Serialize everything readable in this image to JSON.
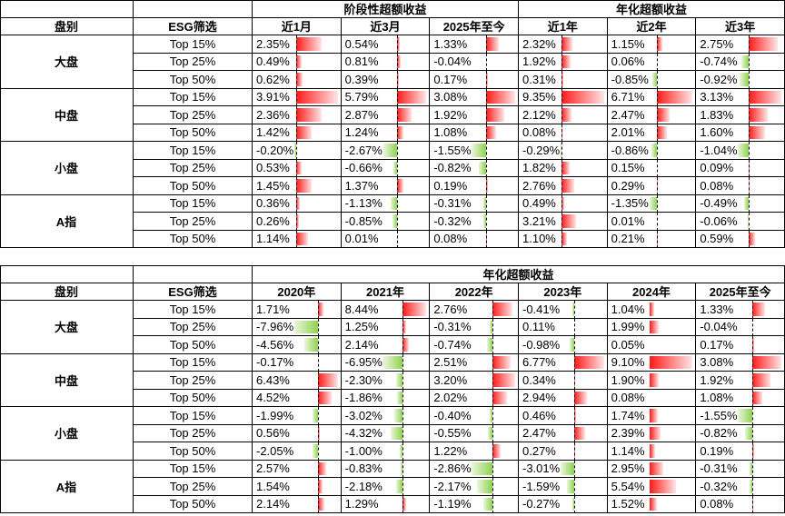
{
  "tables": [
    {
      "group_label": "盘别",
      "filter_label": "ESG筛选",
      "column_groups": [
        {
          "title": "阶段性超额收益",
          "columns": [
            "近1月",
            "近3月",
            "2025年至今"
          ]
        },
        {
          "title": "年化超额收益",
          "columns": [
            "近1年",
            "近2年",
            "近3年"
          ]
        }
      ],
      "groups": [
        {
          "name": "大盘",
          "rows": [
            {
              "filter": "Top 15%",
              "values": [
                2.35,
                0.54,
                1.33,
                2.32,
                1.15,
                2.75
              ],
              "value_labels": [
                "2.35%",
                "0.54%",
                "1.33%",
                "2.32%",
                "1.15%",
                "2.75%"
              ]
            },
            {
              "filter": "Top 25%",
              "values": [
                0.49,
                0.81,
                -0.04,
                1.92,
                0.06,
                -0.74
              ],
              "value_labels": [
                "0.49%",
                "0.81%",
                "-0.04%",
                "1.92%",
                "0.06%",
                "-0.74%"
              ]
            },
            {
              "filter": "Top 50%",
              "values": [
                0.62,
                0.39,
                0.17,
                0.31,
                -0.85,
                -0.92
              ],
              "value_labels": [
                "0.62%",
                "0.39%",
                "0.17%",
                "0.31%",
                "-0.85%",
                "-0.92%"
              ]
            }
          ]
        },
        {
          "name": "中盘",
          "rows": [
            {
              "filter": "Top 15%",
              "values": [
                3.91,
                5.79,
                3.08,
                9.35,
                6.71,
                3.13
              ],
              "value_labels": [
                "3.91%",
                "5.79%",
                "3.08%",
                "9.35%",
                "6.71%",
                "3.13%"
              ]
            },
            {
              "filter": "Top 25%",
              "values": [
                2.36,
                2.87,
                1.92,
                2.12,
                2.47,
                1.83
              ],
              "value_labels": [
                "2.36%",
                "2.87%",
                "1.92%",
                "2.12%",
                "2.47%",
                "1.83%"
              ]
            },
            {
              "filter": "Top 50%",
              "values": [
                1.42,
                1.24,
                1.08,
                0.08,
                2.01,
                1.6
              ],
              "value_labels": [
                "1.42%",
                "1.24%",
                "1.08%",
                "0.08%",
                "2.01%",
                "1.60%"
              ]
            }
          ]
        },
        {
          "name": "小盘",
          "rows": [
            {
              "filter": "Top 15%",
              "values": [
                -0.2,
                -2.67,
                -1.55,
                -0.29,
                -0.86,
                -1.04
              ],
              "value_labels": [
                "-0.20%",
                "-2.67%",
                "-1.55%",
                "-0.29%",
                "-0.86%",
                "-1.04%"
              ]
            },
            {
              "filter": "Top 25%",
              "values": [
                0.53,
                -0.66,
                -0.82,
                1.82,
                0.15,
                0.09
              ],
              "value_labels": [
                "0.53%",
                "-0.66%",
                "-0.82%",
                "1.82%",
                "0.15%",
                "0.09%"
              ]
            },
            {
              "filter": "Top 50%",
              "values": [
                1.45,
                1.37,
                0.19,
                2.76,
                0.29,
                0.08
              ],
              "value_labels": [
                "1.45%",
                "1.37%",
                "0.19%",
                "2.76%",
                "0.29%",
                "0.08%"
              ]
            }
          ]
        },
        {
          "name": "A指",
          "rows": [
            {
              "filter": "Top 15%",
              "values": [
                0.36,
                -1.13,
                -0.31,
                0.49,
                -1.35,
                -0.49
              ],
              "value_labels": [
                "0.36%",
                "-1.13%",
                "-0.31%",
                "0.49%",
                "-1.35%",
                "-0.49%"
              ]
            },
            {
              "filter": "Top 25%",
              "values": [
                0.26,
                -0.85,
                -0.32,
                3.21,
                0.01,
                -0.06
              ],
              "value_labels": [
                "0.26%",
                "-0.85%",
                "-0.32%",
                "3.21%",
                "0.01%",
                "-0.06%"
              ]
            },
            {
              "filter": "Top 50%",
              "values": [
                1.14,
                0.01,
                0.08,
                1.1,
                0.21,
                0.59
              ],
              "value_labels": [
                "1.14%",
                "0.01%",
                "0.08%",
                "1.10%",
                "0.21%",
                "0.59%"
              ]
            }
          ]
        }
      ]
    },
    {
      "group_label": "盘别",
      "filter_label": "ESG筛选",
      "column_groups": [
        {
          "title": "年化超额收益",
          "columns": [
            "2020年",
            "2021年",
            "2022年",
            "2023年",
            "2024年",
            "2025年至今"
          ]
        }
      ],
      "groups": [
        {
          "name": "大盘",
          "rows": [
            {
              "filter": "Top 15%",
              "values": [
                1.71,
                8.44,
                2.76,
                -0.41,
                1.04,
                1.33
              ],
              "value_labels": [
                "1.71%",
                "8.44%",
                "2.76%",
                "-0.41%",
                "1.04%",
                "1.33%"
              ]
            },
            {
              "filter": "Top 25%",
              "values": [
                -7.96,
                1.25,
                -0.31,
                0.11,
                1.99,
                -0.04
              ],
              "value_labels": [
                "-7.96%",
                "1.25%",
                "-0.31%",
                "0.11%",
                "1.99%",
                "-0.04%"
              ]
            },
            {
              "filter": "Top 50%",
              "values": [
                -4.56,
                2.14,
                -0.74,
                -0.98,
                0.05,
                0.17
              ],
              "value_labels": [
                "-4.56%",
                "2.14%",
                "-0.74%",
                "-0.98%",
                "0.05%",
                "0.17%"
              ]
            }
          ]
        },
        {
          "name": "中盘",
          "rows": [
            {
              "filter": "Top 15%",
              "values": [
                -0.17,
                -6.95,
                2.51,
                6.77,
                9.1,
                3.08
              ],
              "value_labels": [
                "-0.17%",
                "-6.95%",
                "2.51%",
                "6.77%",
                "9.10%",
                "3.08%"
              ]
            },
            {
              "filter": "Top 25%",
              "values": [
                6.43,
                -2.3,
                3.2,
                0.34,
                1.9,
                1.92
              ],
              "value_labels": [
                "6.43%",
                "-2.30%",
                "3.20%",
                "0.34%",
                "1.90%",
                "1.92%"
              ]
            },
            {
              "filter": "Top 50%",
              "values": [
                4.52,
                -1.86,
                2.02,
                2.94,
                0.08,
                1.08
              ],
              "value_labels": [
                "4.52%",
                "-1.86%",
                "2.02%",
                "2.94%",
                "0.08%",
                "1.08%"
              ]
            }
          ]
        },
        {
          "name": "小盘",
          "rows": [
            {
              "filter": "Top 15%",
              "values": [
                -1.99,
                -3.02,
                -0.4,
                0.46,
                1.74,
                -1.55
              ],
              "value_labels": [
                "-1.99%",
                "-3.02%",
                "-0.40%",
                "0.46%",
                "1.74%",
                "-1.55%"
              ]
            },
            {
              "filter": "Top 25%",
              "values": [
                0.56,
                -4.32,
                -0.55,
                2.47,
                2.39,
                -0.82
              ],
              "value_labels": [
                "0.56%",
                "-4.32%",
                "-0.55%",
                "2.47%",
                "2.39%",
                "-0.82%"
              ]
            },
            {
              "filter": "Top 50%",
              "values": [
                -2.05,
                -1.0,
                1.22,
                0.27,
                1.14,
                0.19
              ],
              "value_labels": [
                "-2.05%",
                "-1.00%",
                "1.22%",
                "0.27%",
                "1.14%",
                "0.19%"
              ]
            }
          ]
        },
        {
          "name": "A指",
          "rows": [
            {
              "filter": "Top 15%",
              "values": [
                2.57,
                -0.83,
                -2.86,
                -3.01,
                2.95,
                -0.31
              ],
              "value_labels": [
                "2.57%",
                "-0.83%",
                "-2.86%",
                "-3.01%",
                "2.95%",
                "-0.31%"
              ]
            },
            {
              "filter": "Top 25%",
              "values": [
                1.54,
                -2.18,
                -2.17,
                -1.59,
                5.54,
                -0.32
              ],
              "value_labels": [
                "1.54%",
                "-2.18%",
                "-2.17%",
                "-1.59%",
                "5.54%",
                "-0.32%"
              ]
            },
            {
              "filter": "Top 50%",
              "values": [
                2.14,
                1.29,
                -1.19,
                -0.27,
                1.52,
                0.08
              ],
              "value_labels": [
                "2.14%",
                "1.29%",
                "-1.19%",
                "-0.27%",
                "1.52%",
                "0.08%"
              ]
            }
          ]
        }
      ]
    }
  ]
}
